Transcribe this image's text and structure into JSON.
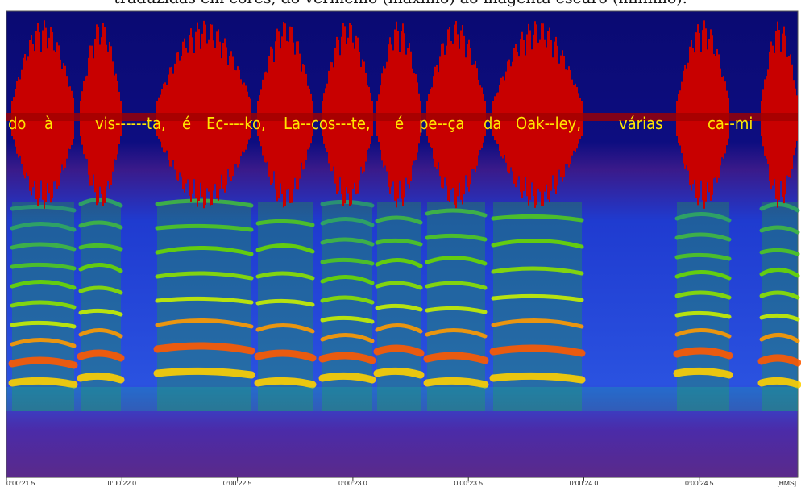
{
  "caption": "traduzidas em cores, do vermelho (máximo) ao magenta escuro (mínimo).",
  "syllables": [
    "do",
    "à",
    "vis------ta,",
    "é",
    "Ec----ko,",
    "La--cos---te,",
    "é",
    "pe--ça",
    "da",
    "Oak--ley,",
    "várias",
    "ca--mi"
  ],
  "time_axis": {
    "labels": [
      "0:00:21.5",
      "0:00:22.0",
      "0:00:22.5",
      "0:00:23.0",
      "0:00:23.5",
      "0:00:24.0",
      "0:00:24.5"
    ],
    "unit": "[HMS]"
  }
}
